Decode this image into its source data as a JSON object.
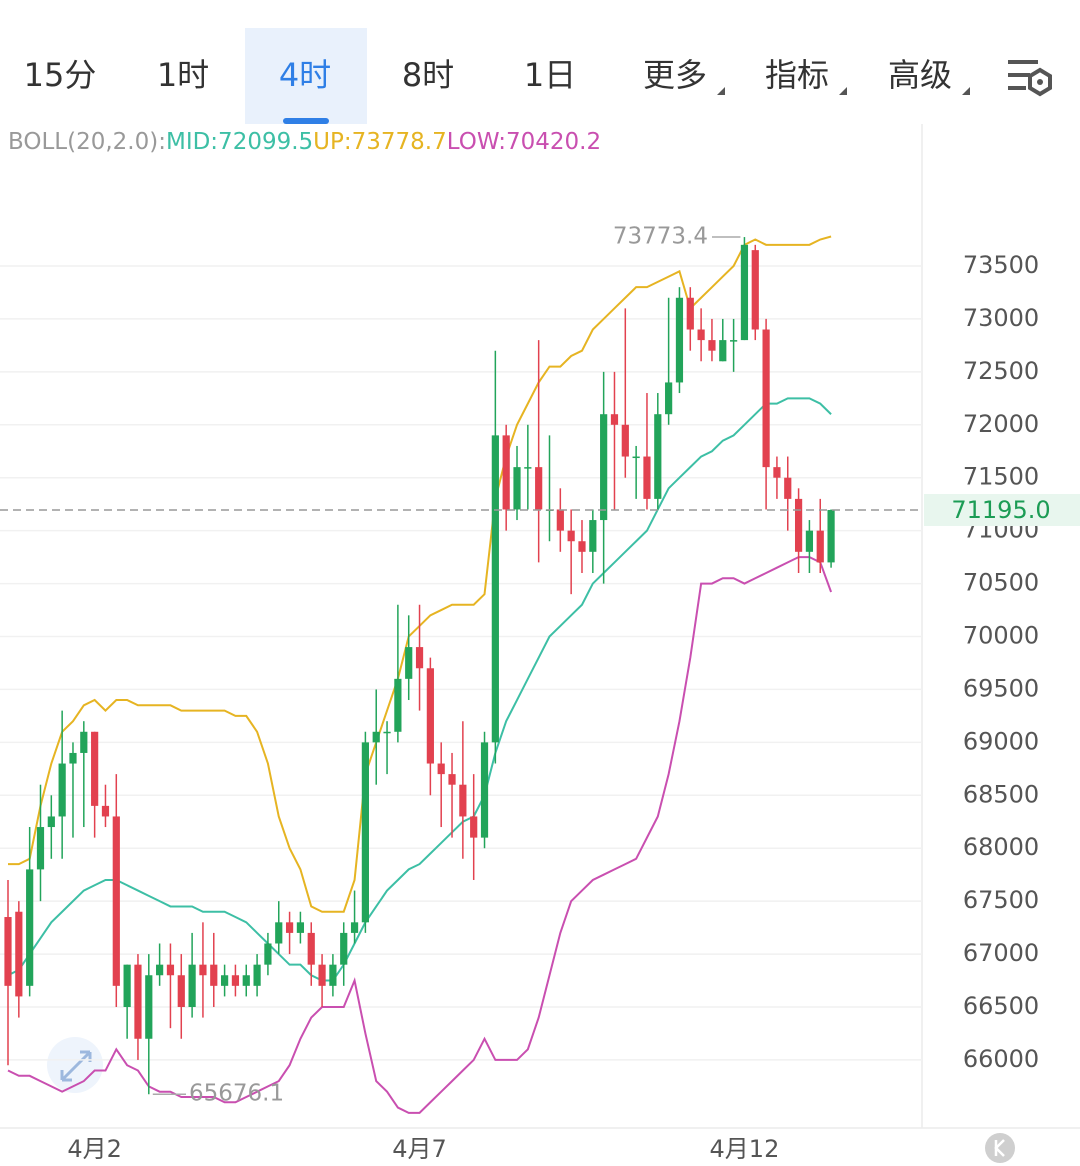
{
  "toolbar": {
    "tabs": [
      "15分",
      "1时",
      "4时",
      "8时",
      "1日",
      "更多",
      "指标",
      "高级"
    ],
    "selected": 2
  },
  "chart_data": {
    "type": "candlestick",
    "indicator_label": "BOLL(20,2.0):",
    "categories": [
      null,
      null,
      null,
      null,
      null,
      null,
      null,
      null,
      "4月2",
      null,
      null,
      null,
      null,
      null,
      null,
      null,
      null,
      null,
      null,
      null,
      null,
      null,
      null,
      null,
      null,
      null,
      null,
      null,
      null,
      null,
      null,
      null,
      null,
      null,
      null,
      null,
      null,
      null,
      "4月7",
      null,
      null,
      null,
      null,
      null,
      null,
      null,
      null,
      null,
      null,
      null,
      null,
      null,
      null,
      null,
      null,
      null,
      null,
      null,
      null,
      null,
      null,
      null,
      null,
      null,
      null,
      null,
      null,
      null,
      "4月12",
      null,
      null,
      null,
      null,
      null,
      null,
      null,
      null
    ],
    "open": [
      67350,
      67400,
      66700,
      67800,
      68200,
      68300,
      68800,
      68900,
      69100,
      68400,
      68300,
      66500,
      66900,
      66200,
      66800,
      66900,
      66800,
      66500,
      66900,
      66900,
      66700,
      66800,
      66700,
      66700,
      66900,
      67100,
      67300,
      67200,
      67200,
      66900,
      66700,
      66900,
      67200,
      67300,
      69000,
      69100,
      69100,
      69600,
      69900,
      69700,
      68800,
      68700,
      68600,
      68300,
      68100,
      69000,
      71900,
      71200,
      71600,
      71600,
      71200,
      71200,
      71000,
      70900,
      70800,
      71100,
      72100,
      72000,
      71700,
      71700,
      71300,
      72100,
      72400,
      73200,
      72900,
      72800,
      72600,
      72800,
      72800,
      73650,
      72900,
      71600,
      71500,
      71300,
      70800,
      71000,
      70700
    ],
    "close": [
      66700,
      66600,
      67800,
      68200,
      68300,
      68800,
      68900,
      69100,
      68400,
      68300,
      66700,
      66900,
      66200,
      66800,
      66900,
      66800,
      66500,
      66900,
      66800,
      66700,
      66800,
      66700,
      66800,
      66900,
      67100,
      67300,
      67200,
      67300,
      66900,
      66700,
      66900,
      67200,
      67300,
      69000,
      69100,
      69100,
      69600,
      69900,
      69700,
      68800,
      68700,
      68600,
      68300,
      68100,
      69000,
      71900,
      71200,
      71600,
      71600,
      71200,
      71200,
      71000,
      70900,
      70800,
      71100,
      72100,
      72000,
      71700,
      71700,
      71300,
      72100,
      72400,
      73200,
      72900,
      72800,
      72700,
      72800,
      72800,
      73700,
      72900,
      71600,
      71500,
      71300,
      70800,
      71000,
      70700,
      71195
    ],
    "high": [
      67700,
      67500,
      68200,
      68600,
      68500,
      69300,
      69000,
      69200,
      69100,
      68600,
      68700,
      66900,
      67000,
      67000,
      67100,
      67100,
      67000,
      67200,
      67300,
      67200,
      66900,
      66900,
      66900,
      67000,
      67200,
      67500,
      67400,
      67400,
      67300,
      67000,
      67000,
      67300,
      67600,
      69100,
      69500,
      69200,
      70300,
      70200,
      70300,
      69800,
      69000,
      68900,
      69200,
      68700,
      69100,
      72700,
      72000,
      71800,
      72000,
      72800,
      71900,
      71400,
      71200,
      71100,
      71200,
      72500,
      72500,
      73100,
      71800,
      72300,
      72300,
      73200,
      73300,
      73300,
      73100,
      73000,
      73000,
      73000,
      73773.4,
      73700,
      73000,
      71700,
      71700,
      71400,
      71100,
      71300,
      71200
    ],
    "low": [
      65950,
      66400,
      66600,
      67500,
      67900,
      67900,
      68100,
      68200,
      68100,
      68200,
      66500,
      66200,
      66000,
      65676.1,
      66700,
      66300,
      66200,
      66400,
      66400,
      66500,
      66600,
      66600,
      66600,
      66600,
      66800,
      67000,
      67000,
      67100,
      66700,
      66500,
      66600,
      66700,
      67100,
      67200,
      68600,
      68700,
      69000,
      69400,
      69300,
      68500,
      68200,
      68100,
      67900,
      67700,
      68000,
      68800,
      71000,
      71100,
      71200,
      70700,
      70900,
      70800,
      70400,
      70600,
      70600,
      70500,
      71200,
      71500,
      71300,
      71200,
      71200,
      72000,
      72300,
      72700,
      72600,
      72600,
      72600,
      72500,
      72800,
      72800,
      71200,
      71300,
      71000,
      70600,
      70600,
      70600,
      70650
    ],
    "up_color": "#22a45a",
    "down_color": "#e2414f",
    "series": [
      {
        "name": "MID:72099.5",
        "color": "#3dbfa5",
        "values": [
          66800,
          66850,
          67000,
          67150,
          67300,
          67400,
          67500,
          67600,
          67650,
          67700,
          67700,
          67650,
          67600,
          67550,
          67500,
          67450,
          67450,
          67450,
          67400,
          67400,
          67400,
          67350,
          67300,
          67200,
          67100,
          67000,
          66900,
          66900,
          66800,
          66750,
          66750,
          66900,
          67100,
          67300,
          67450,
          67600,
          67700,
          67800,
          67850,
          67950,
          68050,
          68150,
          68250,
          68300,
          68500,
          68900,
          69200,
          69400,
          69600,
          69800,
          70000,
          70100,
          70200,
          70300,
          70500,
          70600,
          70700,
          70800,
          70900,
          71000,
          71200,
          71400,
          71500,
          71600,
          71700,
          71750,
          71850,
          71900,
          72000,
          72100,
          72200,
          72200,
          72250,
          72250,
          72250,
          72200,
          72099.5
        ]
      },
      {
        "name": "UP:73778.7",
        "color": "#e6b422",
        "values": [
          67850,
          67850,
          67900,
          68400,
          68800,
          69100,
          69200,
          69350,
          69400,
          69300,
          69400,
          69400,
          69350,
          69350,
          69350,
          69350,
          69300,
          69300,
          69300,
          69300,
          69300,
          69250,
          69250,
          69100,
          68800,
          68300,
          68000,
          67800,
          67450,
          67400,
          67400,
          67400,
          67700,
          68700,
          69000,
          69300,
          69600,
          70000,
          70100,
          70200,
          70250,
          70300,
          70300,
          70300,
          70400,
          71300,
          71700,
          72000,
          72200,
          72400,
          72550,
          72550,
          72650,
          72700,
          72900,
          73000,
          73100,
          73200,
          73300,
          73300,
          73350,
          73400,
          73450,
          73100,
          73200,
          73300,
          73400,
          73500,
          73700,
          73750,
          73700,
          73700,
          73700,
          73700,
          73700,
          73750,
          73778.7
        ]
      },
      {
        "name": "LOW:70420.2",
        "color": "#c94fb0",
        "values": [
          65900,
          65850,
          65850,
          65800,
          65750,
          65700,
          65750,
          65800,
          65900,
          65900,
          66100,
          65950,
          65900,
          65750,
          65700,
          65700,
          65650,
          65650,
          65650,
          65650,
          65600,
          65600,
          65650,
          65700,
          65750,
          65800,
          65950,
          66200,
          66400,
          66500,
          66500,
          66500,
          66750,
          66250,
          65800,
          65700,
          65550,
          65500,
          65500,
          65600,
          65700,
          65800,
          65900,
          66000,
          66200,
          66000,
          66000,
          66000,
          66100,
          66400,
          66800,
          67200,
          67500,
          67600,
          67700,
          67750,
          67800,
          67850,
          67900,
          68100,
          68300,
          68700,
          69200,
          69800,
          70500,
          70500,
          70550,
          70550,
          70500,
          70550,
          70600,
          70650,
          70700,
          70750,
          70750,
          70700,
          70420.2
        ]
      }
    ],
    "last_price": {
      "value": 71195,
      "label": "71195.0"
    },
    "ylim": [
      65357,
      74832
    ],
    "yticks": [
      66000,
      66500,
      67000,
      67500,
      68000,
      68500,
      69000,
      69500,
      70000,
      70500,
      71000,
      71500,
      72000,
      72500,
      73000,
      73500
    ],
    "grid": true
  }
}
